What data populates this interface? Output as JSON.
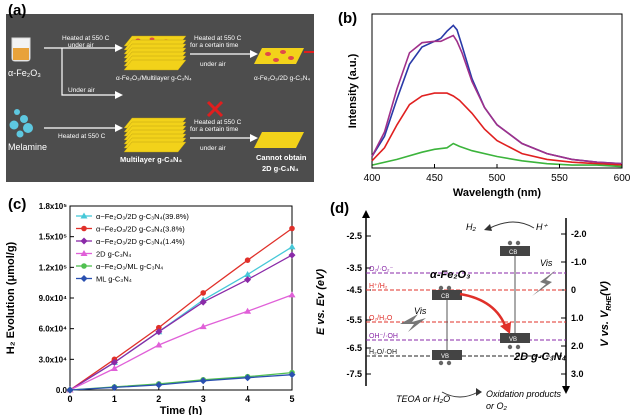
{
  "panels": {
    "a": {
      "label": "(a)",
      "precursor_top": "α-Fe₂O₃",
      "precursor_bottom": "Melamine",
      "step_top_1": "Heated at 550 C",
      "step_top_1b": "under air",
      "step_top_2": "Heated at 550 C",
      "step_top_2b": "for a certain time",
      "step_top_2c": "under air",
      "step_mid_1": "Under air",
      "step_mid_2": "Heated at 550 C",
      "step_bot_2": "Heated at 550 C",
      "step_bot_2b": "for a certain time",
      "step_bot_2c": "under air",
      "product_top_1": "α-Fe₂O₃/Multilayer g-C₃N₄",
      "product_top_2": "α-Fe₂O₃/2D g-C₃N₄",
      "product_bot_1": "Multilayer g-C₃N₄",
      "product_bot_2": "Cannot obtain",
      "product_bot_2b": "2D g-C₃N₄",
      "colors": {
        "background": "#4d4d4d",
        "sheet": "#f2d21a",
        "dot": "#e04a4a",
        "cross": "#e01e1e"
      }
    },
    "b": {
      "label": "(b)",
      "chart_data": {
        "type": "line",
        "xlabel": "Wavelength (nm)",
        "ylabel": "Intensity (a.u.)",
        "xlim": [
          400,
          600
        ],
        "xticks": [
          400,
          450,
          500,
          550,
          600
        ],
        "series": [
          {
            "color": "#2a3aa8",
            "x": [
              400,
              410,
              420,
              430,
              440,
              450,
              455,
              460,
              465,
              468,
              472,
              480,
              490,
              500,
              520,
              540,
              560,
              580,
              600
            ],
            "y": [
              0.08,
              0.22,
              0.48,
              0.72,
              0.84,
              0.88,
              0.9,
              0.95,
              0.99,
              0.96,
              0.85,
              0.62,
              0.42,
              0.3,
              0.17,
              0.1,
              0.06,
              0.04,
              0.03
            ]
          },
          {
            "color": "#a0308a",
            "x": [
              400,
              410,
              420,
              430,
              440,
              450,
              455,
              460,
              465,
              468,
              472,
              480,
              490,
              500,
              520,
              540,
              560,
              580,
              600
            ],
            "y": [
              0.08,
              0.25,
              0.55,
              0.8,
              0.87,
              0.88,
              0.88,
              0.9,
              0.92,
              0.88,
              0.8,
              0.6,
              0.42,
              0.3,
              0.17,
              0.1,
              0.06,
              0.04,
              0.03
            ]
          },
          {
            "color": "#e02020",
            "x": [
              400,
              410,
              420,
              430,
              440,
              450,
              460,
              465,
              470,
              480,
              490,
              500,
              520,
              540,
              560,
              580,
              600
            ],
            "y": [
              0.05,
              0.14,
              0.3,
              0.44,
              0.5,
              0.52,
              0.52,
              0.5,
              0.47,
              0.38,
              0.27,
              0.19,
              0.1,
              0.06,
              0.04,
              0.03,
              0.02
            ]
          },
          {
            "color": "#3cb43c",
            "x": [
              400,
              420,
              440,
              450,
              460,
              465,
              470,
              480,
              500,
              520,
              540,
              560,
              580,
              600
            ],
            "y": [
              0.02,
              0.06,
              0.11,
              0.13,
              0.14,
              0.17,
              0.15,
              0.12,
              0.08,
              0.05,
              0.03,
              0.02,
              0.02,
              0.01
            ]
          }
        ]
      }
    },
    "c": {
      "label": "(c)",
      "chart_data": {
        "type": "line",
        "xlabel": "Time (h)",
        "ylabel": "H₂ Evolution (μmol/g)",
        "xlim": [
          0,
          5
        ],
        "ylim": [
          0,
          180000
        ],
        "xticks": [
          0,
          1,
          2,
          3,
          4,
          5
        ],
        "yticks": [
          0,
          30000,
          60000,
          90000,
          120000,
          150000,
          180000
        ],
        "ytick_labels": [
          "0.0",
          "3.0x10⁴",
          "6.0x10⁴",
          "9.0x10⁴",
          "1.2x10⁵",
          "1.5x10⁵",
          "1.8x10⁵"
        ],
        "x": [
          0,
          1,
          2,
          3,
          4,
          5
        ],
        "series": [
          {
            "name": "α−Fe₂O₃/2D g-C₃N₄(39.8%)",
            "color": "#46c8d8",
            "marker": "triangle",
            "values": [
              0,
              27000,
              57000,
              88000,
              113000,
              140000
            ]
          },
          {
            "name": "α−Fe₂O₃/2D g-C₃N₄(3.8%)",
            "color": "#e0302a",
            "marker": "circle",
            "values": [
              0,
              30000,
              61000,
              95000,
              127000,
              158000
            ]
          },
          {
            "name": "α−Fe₂O₃/2D g-C₃N₄(1.4%)",
            "color": "#8a2aa8",
            "marker": "diamond",
            "values": [
              0,
              27000,
              57000,
              86000,
              108000,
              132000
            ]
          },
          {
            "name": "2D g-C₃N₄",
            "color": "#e060d8",
            "marker": "triangle",
            "values": [
              0,
              21000,
              44000,
              62000,
              77000,
              93000
            ]
          },
          {
            "name": "α−Fe₂O₃/ML g-C₃N₄",
            "color": "#50c050",
            "marker": "circle",
            "values": [
              0,
              3000,
              6000,
              10000,
              13000,
              17000
            ]
          },
          {
            "name": "ML g-C₃N₄",
            "color": "#2a50b0",
            "marker": "diamond",
            "values": [
              0,
              2500,
              5000,
              9000,
              12000,
              15000
            ]
          }
        ]
      }
    },
    "d": {
      "label": "(d)",
      "left_axis_label": "E vs. Ev (eV)",
      "right_axis_label": "V vs. V",
      "right_axis_sub": "RHE",
      "right_axis_end": "(V)",
      "left_ticks": [
        "-2.5",
        "-3.5",
        "-4.5",
        "-5.5",
        "-6.5",
        "-7.5"
      ],
      "right_ticks": [
        "-2.0",
        "-1.0",
        "0",
        "1.0",
        "2.0",
        "3.0"
      ],
      "levels": [
        "O₂/·O₂⁻",
        "H⁺/H₂",
        "O₂/H₂O",
        "OH⁻/·OH",
        "H₂O/·OH"
      ],
      "fe2o3_label": "α-Fe₂O₃",
      "gcn_label": "2D g-C₃N₄",
      "cb": "CB",
      "vb": "VB",
      "vis": "Vis",
      "h2": "H₂",
      "hplus": "H⁺",
      "teoa": "TEOA or H₂O",
      "oxidation": "Oxidation products",
      "or_o2": "or O₂",
      "colors": {
        "level_purple": "#8a2aa8",
        "level_red": "#e0302a",
        "level_black": "#222222",
        "arrow": "#e0302a"
      }
    }
  }
}
